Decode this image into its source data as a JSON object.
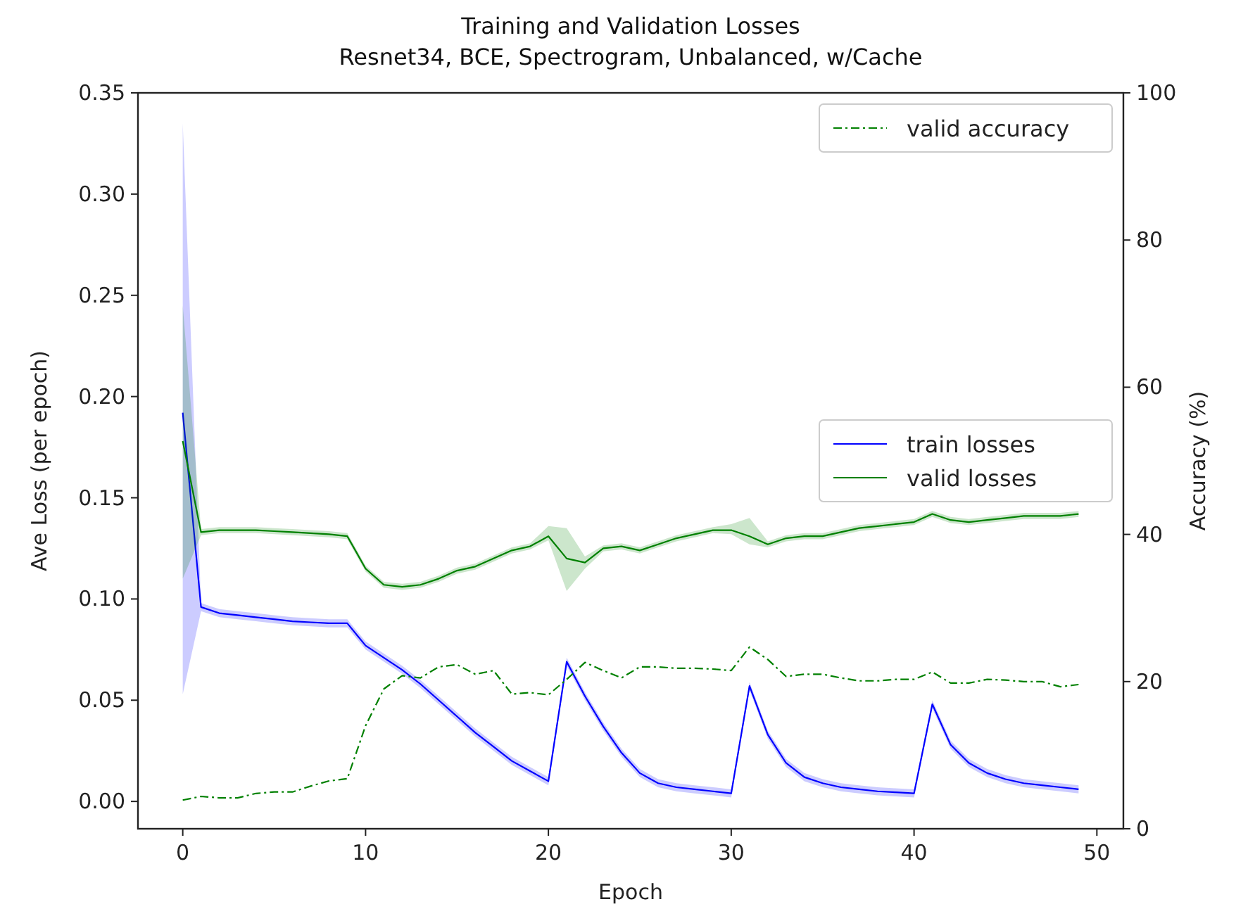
{
  "chart_data": {
    "type": "line",
    "title": "Training and Validation Losses\nResnet34, BCE, Spectrogram, Unbalanced, w/Cache",
    "xlabel": "Epoch",
    "ylabel": "Ave Loss (per epoch)",
    "y2label": "Accuracy (%)",
    "x": [
      0,
      1,
      2,
      3,
      4,
      5,
      6,
      7,
      8,
      9,
      10,
      11,
      12,
      13,
      14,
      15,
      16,
      17,
      18,
      19,
      20,
      21,
      22,
      23,
      24,
      25,
      26,
      27,
      28,
      29,
      30,
      31,
      32,
      33,
      34,
      35,
      36,
      37,
      38,
      39,
      40,
      41,
      42,
      43,
      44,
      45,
      46,
      47,
      48,
      49
    ],
    "xlim": [
      -2.45,
      51.45
    ],
    "xticks": [
      0,
      10,
      20,
      30,
      40,
      50
    ],
    "ylim": [
      -0.0135,
      0.35
    ],
    "yticks": [
      {
        "value": 0,
        "label": "0.00"
      },
      {
        "value": 0.05,
        "label": "0.05"
      },
      {
        "value": 0.1,
        "label": "0.10"
      },
      {
        "value": 0.15,
        "label": "0.15"
      },
      {
        "value": 0.2,
        "label": "0.20"
      },
      {
        "value": 0.25,
        "label": "0.25"
      },
      {
        "value": 0.3,
        "label": "0.30"
      },
      {
        "value": 0.35,
        "label": "0.35"
      }
    ],
    "y2lim": [
      0,
      100
    ],
    "y2ticks": [
      0,
      20,
      40,
      60,
      80,
      100
    ],
    "legend": "right",
    "grid": false,
    "series": [
      {
        "name": "train losses",
        "color": "#0000ff",
        "line_style": "solid",
        "values": [
          0.192,
          0.096,
          0.093,
          0.092,
          0.091,
          0.09,
          0.089,
          0.0885,
          0.088,
          0.088,
          0.077,
          0.071,
          0.065,
          0.058,
          0.05,
          0.042,
          0.034,
          0.027,
          0.02,
          0.015,
          0.01,
          0.069,
          0.052,
          0.037,
          0.024,
          0.014,
          0.009,
          0.007,
          0.006,
          0.005,
          0.004,
          0.057,
          0.033,
          0.019,
          0.012,
          0.009,
          0.007,
          0.006,
          0.005,
          0.0045,
          0.004,
          0.048,
          0.028,
          0.019,
          0.014,
          0.011,
          0.009,
          0.008,
          0.007,
          0.006
        ],
        "lower": [
          0.053,
          0.094,
          0.091,
          0.09,
          0.089,
          0.088,
          0.087,
          0.0865,
          0.086,
          0.086,
          0.075,
          0.069,
          0.063,
          0.056,
          0.048,
          0.04,
          0.032,
          0.025,
          0.018,
          0.013,
          0.008,
          0.067,
          0.05,
          0.035,
          0.022,
          0.012,
          0.007,
          0.005,
          0.004,
          0.003,
          0.002,
          0.055,
          0.031,
          0.017,
          0.01,
          0.007,
          0.005,
          0.004,
          0.003,
          0.0025,
          0.002,
          0.046,
          0.026,
          0.017,
          0.012,
          0.009,
          0.007,
          0.006,
          0.005,
          0.004
        ],
        "upper": [
          0.335,
          0.098,
          0.095,
          0.094,
          0.093,
          0.092,
          0.091,
          0.0905,
          0.09,
          0.09,
          0.079,
          0.073,
          0.067,
          0.06,
          0.052,
          0.044,
          0.036,
          0.029,
          0.022,
          0.017,
          0.012,
          0.071,
          0.054,
          0.039,
          0.026,
          0.016,
          0.011,
          0.009,
          0.008,
          0.007,
          0.006,
          0.059,
          0.035,
          0.021,
          0.014,
          0.011,
          0.009,
          0.008,
          0.007,
          0.0065,
          0.006,
          0.05,
          0.03,
          0.021,
          0.016,
          0.013,
          0.011,
          0.01,
          0.009,
          0.008
        ]
      },
      {
        "name": "valid losses",
        "color": "#008000",
        "line_style": "solid",
        "values": [
          0.178,
          0.133,
          0.134,
          0.134,
          0.134,
          0.1335,
          0.133,
          0.1325,
          0.132,
          0.131,
          0.115,
          0.107,
          0.106,
          0.107,
          0.11,
          0.114,
          0.116,
          0.12,
          0.124,
          0.126,
          0.131,
          0.12,
          0.118,
          0.125,
          0.126,
          0.124,
          0.127,
          0.13,
          0.132,
          0.134,
          0.134,
          0.131,
          0.127,
          0.13,
          0.131,
          0.131,
          0.133,
          0.135,
          0.136,
          0.137,
          0.138,
          0.142,
          0.139,
          0.138,
          0.139,
          0.14,
          0.141,
          0.141,
          0.141,
          0.142
        ],
        "lower": [
          0.11,
          0.1315,
          0.1325,
          0.1325,
          0.1325,
          0.132,
          0.1315,
          0.131,
          0.1305,
          0.1295,
          0.1135,
          0.1055,
          0.1045,
          0.1055,
          0.1085,
          0.1125,
          0.1145,
          0.1185,
          0.1225,
          0.1245,
          0.129,
          0.104,
          0.115,
          0.1235,
          0.1245,
          0.1225,
          0.1255,
          0.1285,
          0.1305,
          0.1325,
          0.132,
          0.127,
          0.1255,
          0.1285,
          0.1295,
          0.1295,
          0.1315,
          0.1335,
          0.1345,
          0.1355,
          0.1365,
          0.1405,
          0.1375,
          0.1365,
          0.1375,
          0.1385,
          0.1395,
          0.1395,
          0.1395,
          0.1405
        ],
        "upper": [
          0.245,
          0.1345,
          0.1355,
          0.1355,
          0.1355,
          0.135,
          0.1345,
          0.134,
          0.1335,
          0.1325,
          0.1165,
          0.1085,
          0.1075,
          0.1085,
          0.1115,
          0.1155,
          0.1175,
          0.1215,
          0.1255,
          0.1275,
          0.136,
          0.135,
          0.121,
          0.1265,
          0.1275,
          0.1255,
          0.1285,
          0.1315,
          0.1335,
          0.1355,
          0.137,
          0.14,
          0.1285,
          0.1315,
          0.1325,
          0.1325,
          0.1345,
          0.1365,
          0.1375,
          0.1385,
          0.1395,
          0.1435,
          0.1405,
          0.1395,
          0.1405,
          0.1415,
          0.1425,
          0.1425,
          0.1425,
          0.1435
        ]
      },
      {
        "name": "valid accuracy",
        "color": "#008000",
        "axis": "y2",
        "line_style": "dashed",
        "values": [
          3.9,
          4.4,
          4.2,
          4.2,
          4.8,
          5.0,
          5.0,
          5.8,
          6.5,
          6.8,
          14,
          19,
          20.8,
          20.5,
          22,
          22.3,
          21,
          21.5,
          18.3,
          18.5,
          18.2,
          20.3,
          22.6,
          21.5,
          20.5,
          22,
          22,
          21.8,
          21.8,
          21.7,
          21.5,
          24.7,
          23,
          20.7,
          21,
          21,
          20.5,
          20.1,
          20.1,
          20.3,
          20.3,
          21.3,
          19.8,
          19.8,
          20.3,
          20.2,
          20,
          20,
          19.3,
          19.6
        ]
      }
    ]
  }
}
